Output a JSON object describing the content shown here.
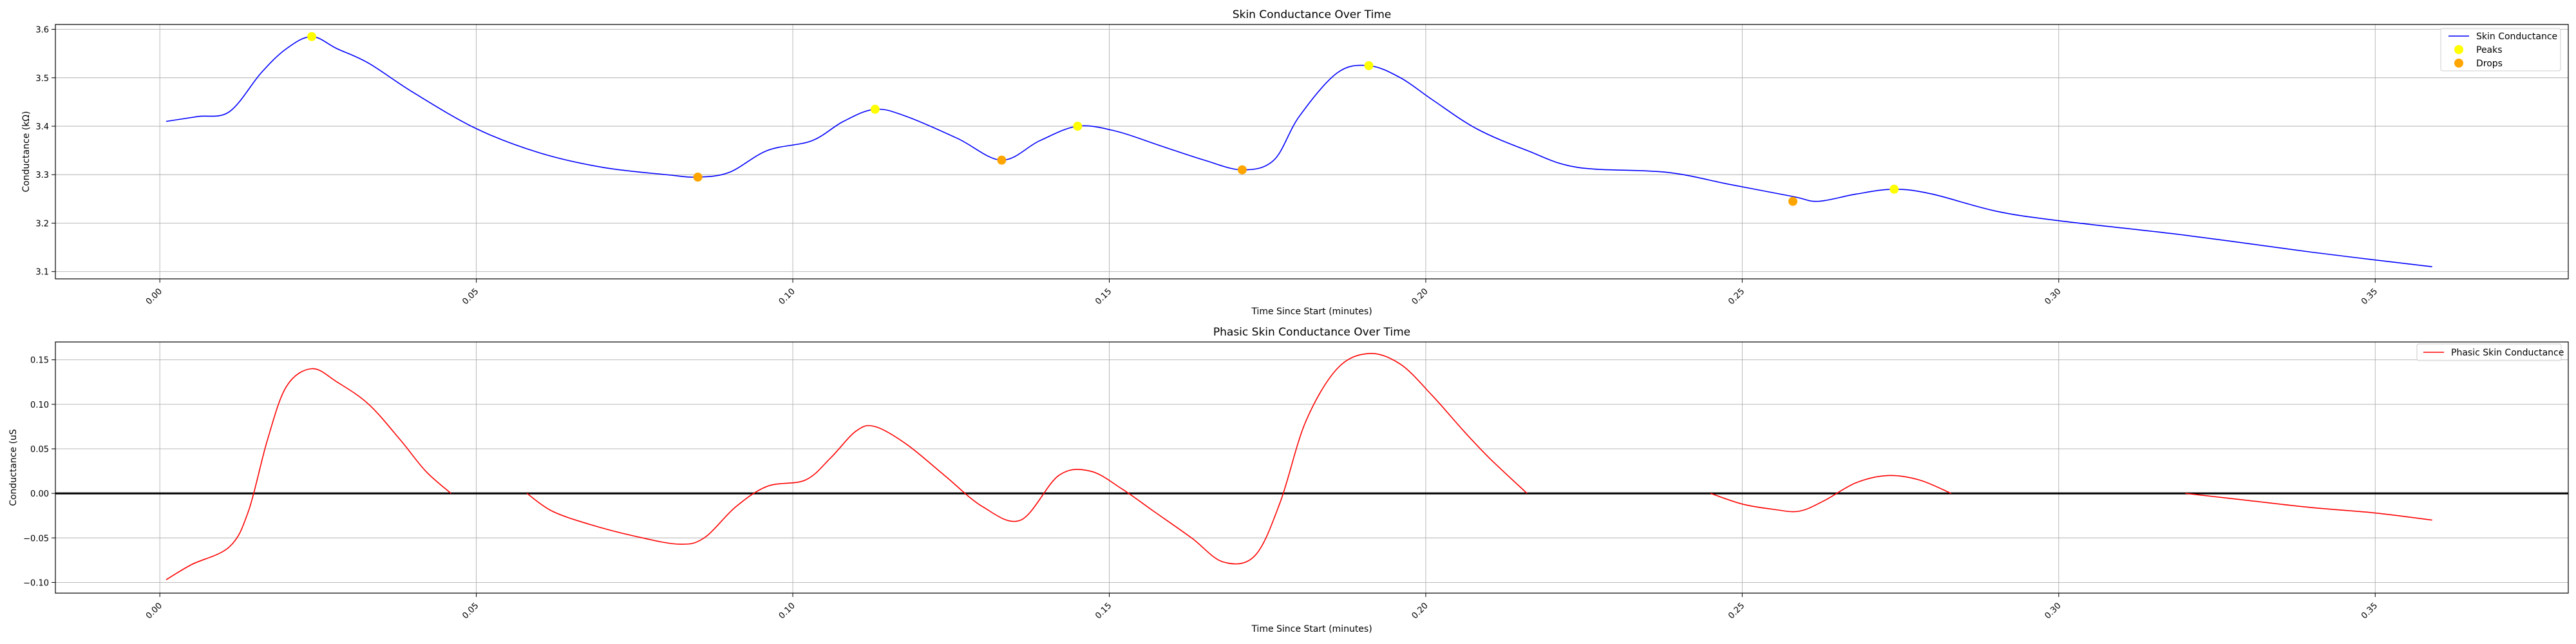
{
  "chart_data": [
    {
      "type": "line",
      "title": "Skin Conductance Over Time",
      "xlabel": "Time Since Start (minutes)",
      "ylabel": "Conductance (kΩ)",
      "xlim": [
        -0.0165,
        0.3805
      ],
      "ylim": [
        3.085,
        3.61
      ],
      "xticks": [
        0.0,
        0.05,
        0.1,
        0.15,
        0.2,
        0.25,
        0.3,
        0.35
      ],
      "xtick_labels": [
        "0.00",
        "0.05",
        "0.10",
        "0.15",
        "0.20",
        "0.25",
        "0.30",
        "0.35"
      ],
      "yticks": [
        3.1,
        3.2,
        3.3,
        3.4,
        3.5,
        3.6
      ],
      "ytick_labels": [
        "3.1",
        "3.2",
        "3.3",
        "3.4",
        "3.5",
        "3.6"
      ],
      "grid": true,
      "legend_position": "top-right",
      "series": [
        {
          "name": "Skin Conductance",
          "kind": "line",
          "color": "#0000ff",
          "x": [
            0.001,
            0.006,
            0.011,
            0.016,
            0.02,
            0.024,
            0.028,
            0.033,
            0.04,
            0.05,
            0.06,
            0.07,
            0.08,
            0.085,
            0.09,
            0.096,
            0.103,
            0.108,
            0.113,
            0.118,
            0.126,
            0.133,
            0.139,
            0.145,
            0.151,
            0.158,
            0.165,
            0.171,
            0.176,
            0.18,
            0.186,
            0.191,
            0.196,
            0.201,
            0.208,
            0.216,
            0.224,
            0.238,
            0.248,
            0.258,
            0.262,
            0.268,
            0.274,
            0.28,
            0.29,
            0.3,
            0.32,
            0.34,
            0.359
          ],
          "y": [
            3.41,
            3.42,
            3.43,
            3.51,
            3.56,
            3.585,
            3.56,
            3.53,
            3.47,
            3.395,
            3.345,
            3.315,
            3.3,
            3.295,
            3.305,
            3.35,
            3.37,
            3.41,
            3.435,
            3.42,
            3.375,
            3.33,
            3.37,
            3.4,
            3.39,
            3.36,
            3.33,
            3.31,
            3.33,
            3.42,
            3.51,
            3.525,
            3.5,
            3.455,
            3.395,
            3.35,
            3.315,
            3.305,
            3.28,
            3.255,
            3.245,
            3.26,
            3.27,
            3.26,
            3.225,
            3.205,
            3.175,
            3.14,
            3.11
          ]
        },
        {
          "name": "Peaks",
          "kind": "scatter",
          "color": "#ffff00",
          "x": [
            0.024,
            0.113,
            0.145,
            0.191,
            0.274
          ],
          "y": [
            3.585,
            3.435,
            3.4,
            3.525,
            3.27
          ]
        },
        {
          "name": "Drops",
          "kind": "scatter",
          "color": "#ffa500",
          "x": [
            0.085,
            0.133,
            0.171,
            0.258
          ],
          "y": [
            3.295,
            3.33,
            3.31,
            3.245
          ]
        }
      ]
    },
    {
      "type": "line",
      "title": "Phasic Skin Conductance Over Time",
      "xlabel": "Time Since Start (minutes)",
      "ylabel": "Conductance (uS",
      "xlim": [
        -0.0165,
        0.3805
      ],
      "ylim": [
        -0.112,
        0.17
      ],
      "xticks": [
        0.0,
        0.05,
        0.1,
        0.15,
        0.2,
        0.25,
        0.3,
        0.35
      ],
      "xtick_labels": [
        "0.00",
        "0.05",
        "0.10",
        "0.15",
        "0.20",
        "0.25",
        "0.30",
        "0.35"
      ],
      "yticks": [
        -0.1,
        -0.05,
        0.0,
        0.05,
        0.1,
        0.15
      ],
      "ytick_labels": [
        "−0.10",
        "−0.05",
        "0.00",
        "0.05",
        "0.10",
        "0.15"
      ],
      "grid": true,
      "zero_line": true,
      "legend_position": "top-right",
      "series": [
        {
          "name": "Phasic Skin Conductance",
          "kind": "line",
          "color": "#ff0000",
          "segments": [
            {
              "x": [
                0.001,
                0.005,
                0.011,
                0.014,
                0.017,
                0.02,
                0.024,
                0.028,
                0.033,
                0.038,
                0.042,
                0.046
              ],
              "y": [
                -0.097,
                -0.08,
                -0.06,
                -0.02,
                0.06,
                0.12,
                0.14,
                0.125,
                0.1,
                0.06,
                0.025,
                0.0
              ]
            },
            {
              "x": [
                0.058,
                0.062,
                0.068,
                0.075,
                0.082,
                0.086,
                0.091,
                0.096,
                0.102,
                0.106,
                0.11,
                0.113,
                0.118,
                0.124,
                0.13,
                0.136,
                0.142,
                0.147,
                0.152,
                0.157,
                0.163,
                0.168,
                0.173,
                0.177,
                0.181,
                0.186,
                0.191,
                0.196,
                0.201,
                0.206,
                0.21,
                0.216
              ],
              "y": [
                0.0,
                -0.02,
                -0.035,
                -0.048,
                -0.057,
                -0.05,
                -0.015,
                0.008,
                0.015,
                0.04,
                0.07,
                0.075,
                0.055,
                0.02,
                -0.015,
                -0.03,
                0.02,
                0.025,
                0.005,
                -0.02,
                -0.05,
                -0.077,
                -0.07,
                -0.01,
                0.08,
                0.14,
                0.157,
                0.145,
                0.11,
                0.07,
                0.04,
                0.0
              ]
            },
            {
              "x": [
                0.245,
                0.25,
                0.255,
                0.259,
                0.263,
                0.268,
                0.273,
                0.278,
                0.283
              ],
              "y": [
                0.0,
                -0.012,
                -0.018,
                -0.02,
                -0.008,
                0.012,
                0.02,
                0.015,
                0.0
              ]
            },
            {
              "x": [
                0.32,
                0.33,
                0.34,
                0.35,
                0.359
              ],
              "y": [
                0.0,
                -0.008,
                -0.016,
                -0.022,
                -0.03
              ]
            }
          ]
        }
      ]
    }
  ]
}
